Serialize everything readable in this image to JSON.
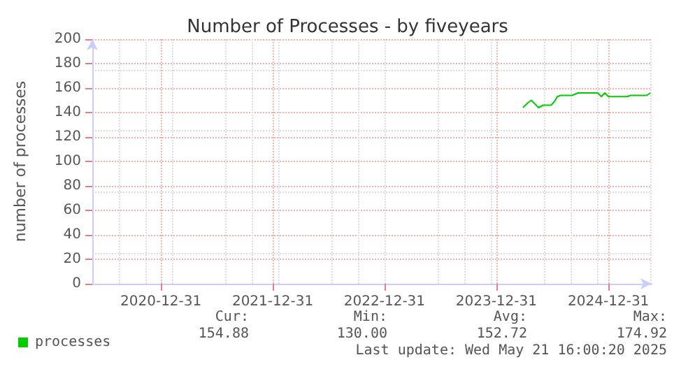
{
  "chart_data": {
    "type": "line",
    "title": "Number of Processes - by fiveyears",
    "ylabel": "number of processes",
    "x": [
      "2024-03-27",
      "2024-04-12",
      "2024-04-23",
      "2024-05-05",
      "2024-05-17",
      "2024-06-01",
      "2024-06-27",
      "2024-07-08",
      "2024-07-17",
      "2024-07-28",
      "2024-09-04",
      "2024-09-22",
      "2024-11-26",
      "2024-12-08",
      "2024-12-19",
      "2024-12-31",
      "2025-03-02",
      "2025-03-13",
      "2025-05-05",
      "2025-05-17"
    ],
    "series": [
      {
        "name": "processes",
        "color": "#00cc00",
        "values": [
          144,
          148,
          150,
          147,
          144,
          146,
          146,
          149,
          153,
          154,
          154,
          156,
          156,
          153,
          156,
          153,
          153,
          154,
          154,
          156
        ]
      }
    ],
    "xlim": [
      "2020-05-21",
      "2025-05-21"
    ],
    "xticks": [
      {
        "value": "2020-12-31",
        "label": "2020-12-31"
      },
      {
        "value": "2021-12-31",
        "label": "2021-12-31"
      },
      {
        "value": "2022-12-31",
        "label": "2022-12-31"
      },
      {
        "value": "2023-12-31",
        "label": "2023-12-31"
      },
      {
        "value": "2024-12-31",
        "label": "2024-12-31"
      }
    ],
    "ylim": [
      0,
      200
    ],
    "yticks": [
      0,
      20,
      40,
      60,
      80,
      100,
      120,
      140,
      160,
      180,
      200
    ],
    "grid": true,
    "legend": "bottom left",
    "marker": "none",
    "line_style": "solid",
    "annotations": [
      "Cur:",
      "Min:",
      "Avg:",
      "Max:",
      "154.88",
      "130.00",
      "152.72",
      "174.92",
      "Last update: Wed May 21 16:00:20 2025"
    ]
  }
}
